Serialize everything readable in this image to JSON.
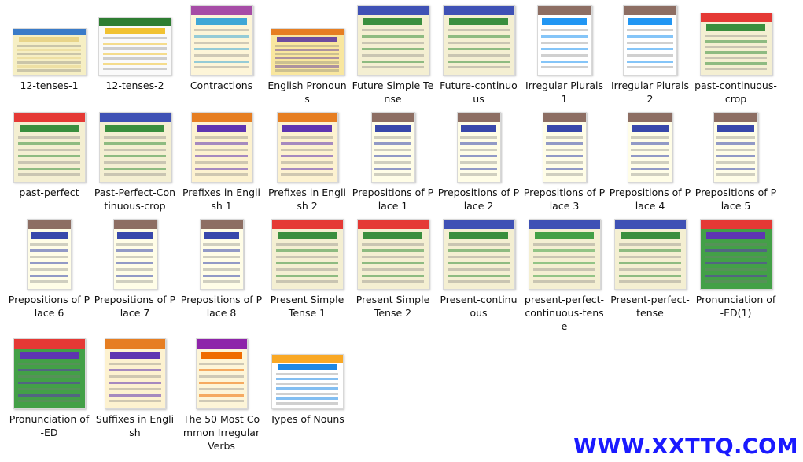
{
  "files": [
    {
      "name": "12-tenses-1",
      "label": "12-tenses-1",
      "icon": "image-thumbnail-icon",
      "palette": [
        "#f6efc4",
        "#e8d48a",
        "#3a7bc8"
      ]
    },
    {
      "name": "12-tenses-2",
      "label": "12-tenses-2",
      "icon": "image-thumbnail-icon",
      "palette": [
        "#fafafa",
        "#f1c232",
        "#2e7d32"
      ]
    },
    {
      "name": "Contractions",
      "label": "Contractions",
      "icon": "image-thumbnail-icon",
      "palette": [
        "#fdf5d8",
        "#3fa7d6",
        "#a64ca6"
      ]
    },
    {
      "name": "English Pronouns",
      "label": "English Pronouns",
      "icon": "image-thumbnail-icon",
      "palette": [
        "#f9e79f",
        "#6d4c9f",
        "#e67e22"
      ]
    },
    {
      "name": "Future Simple Tense",
      "label": "Future Simple Tense",
      "icon": "image-thumbnail-icon",
      "palette": [
        "#f4efd2",
        "#3a8f3e",
        "#3f51b5"
      ]
    },
    {
      "name": "Future-continuous",
      "label": "Future-continuous",
      "icon": "image-thumbnail-icon",
      "palette": [
        "#f4efd2",
        "#3a8f3e",
        "#3f51b5"
      ]
    },
    {
      "name": "Irregular Plurals 1",
      "label": "Irregular Plurals 1",
      "icon": "image-thumbnail-icon",
      "palette": [
        "#ffffff",
        "#2196f3",
        "#8d6e63"
      ]
    },
    {
      "name": "Irregular Plurals 2",
      "label": "Irregular Plurals 2",
      "icon": "image-thumbnail-icon",
      "palette": [
        "#ffffff",
        "#2196f3",
        "#8d6e63"
      ]
    },
    {
      "name": "past-continuous-crop",
      "label": "past-continuous-crop",
      "icon": "image-thumbnail-icon",
      "palette": [
        "#f4efd2",
        "#3a8f3e",
        "#e53935"
      ]
    },
    {
      "name": "past-perfect",
      "label": "past-perfect",
      "icon": "image-thumbnail-icon",
      "palette": [
        "#f4efd2",
        "#3a8f3e",
        "#e53935"
      ]
    },
    {
      "name": "Past-Perfect-Continuous-crop",
      "label": "Past-Perfect-Continuous-crop",
      "icon": "image-thumbnail-icon",
      "palette": [
        "#f4efd2",
        "#3a8f3e",
        "#3f51b5"
      ]
    },
    {
      "name": "Prefixes in English 1",
      "label": "Prefixes in English 1",
      "icon": "image-thumbnail-icon",
      "palette": [
        "#fdf2d0",
        "#5e35b1",
        "#e67e22"
      ]
    },
    {
      "name": "Prefixes in English 2",
      "label": "Prefixes in English 2",
      "icon": "image-thumbnail-icon",
      "palette": [
        "#fdf2d0",
        "#5e35b1",
        "#e67e22"
      ]
    },
    {
      "name": "Prepositions of Place 1",
      "label": "Prepositions of Place 1",
      "icon": "image-thumbnail-icon",
      "palette": [
        "#fffde7",
        "#3949ab",
        "#8d6e63"
      ]
    },
    {
      "name": "Prepositions of Place 2",
      "label": "Prepositions of Place 2",
      "icon": "image-thumbnail-icon",
      "palette": [
        "#fffde7",
        "#3949ab",
        "#8d6e63"
      ]
    },
    {
      "name": "Prepositions of Place 3",
      "label": "Prepositions of Place 3",
      "icon": "image-thumbnail-icon",
      "palette": [
        "#fffde7",
        "#3949ab",
        "#8d6e63"
      ]
    },
    {
      "name": "Prepositions of Place 4",
      "label": "Prepositions of Place 4",
      "icon": "image-thumbnail-icon",
      "palette": [
        "#fffde7",
        "#3949ab",
        "#8d6e63"
      ]
    },
    {
      "name": "Prepositions of Place 5",
      "label": "Prepositions of Place 5",
      "icon": "image-thumbnail-icon",
      "palette": [
        "#fffde7",
        "#3949ab",
        "#8d6e63"
      ]
    },
    {
      "name": "Prepositions of Place 6",
      "label": "Prepositions of Place 6",
      "icon": "image-thumbnail-icon",
      "palette": [
        "#fffde7",
        "#3949ab",
        "#8d6e63"
      ]
    },
    {
      "name": "Prepositions of Place 7",
      "label": "Prepositions of Place 7",
      "icon": "image-thumbnail-icon",
      "palette": [
        "#fffde7",
        "#3949ab",
        "#8d6e63"
      ]
    },
    {
      "name": "Prepositions of Place 8",
      "label": "Prepositions of Place 8",
      "icon": "image-thumbnail-icon",
      "palette": [
        "#fffde7",
        "#3949ab",
        "#8d6e63"
      ]
    },
    {
      "name": "Present Simple Tense 1",
      "label": "Present Simple Tense 1",
      "icon": "image-thumbnail-icon",
      "palette": [
        "#f4efd2",
        "#3a8f3e",
        "#e53935"
      ]
    },
    {
      "name": "Present Simple Tense 2",
      "label": "Present Simple Tense 2",
      "icon": "image-thumbnail-icon",
      "palette": [
        "#f4efd2",
        "#3a8f3e",
        "#e53935"
      ]
    },
    {
      "name": "Present-continuous",
      "label": "Present-continuous",
      "icon": "image-thumbnail-icon",
      "palette": [
        "#f4efd2",
        "#3a8f3e",
        "#3f51b5"
      ]
    },
    {
      "name": "present-perfect-continuous-tense",
      "label": "present-perfect-continuous-tense",
      "icon": "image-thumbnail-icon",
      "palette": [
        "#f4efd2",
        "#43a047",
        "#3f51b5"
      ]
    },
    {
      "name": "Present-perfect-tense",
      "label": "Present-perfect-tense",
      "icon": "image-thumbnail-icon",
      "palette": [
        "#f4efd2",
        "#3a8f3e",
        "#3f51b5"
      ]
    },
    {
      "name": "Pronunciation of -ED(1)",
      "label": "Pronunciation of -ED(1)",
      "icon": "image-thumbnail-icon",
      "palette": [
        "#43a047",
        "#5e35b1",
        "#e53935"
      ]
    },
    {
      "name": "Pronunciation of -ED",
      "label": "Pronunciation of -ED",
      "icon": "image-thumbnail-icon",
      "palette": [
        "#43a047",
        "#5e35b1",
        "#e53935"
      ]
    },
    {
      "name": "Suffixes in English",
      "label": "Suffixes in English",
      "icon": "image-thumbnail-icon",
      "palette": [
        "#fdf2d0",
        "#5e35b1",
        "#e67e22"
      ]
    },
    {
      "name": "The 50 Most Common Irregular Verbs",
      "label": "The 50 Most Common Irregular Verbs",
      "icon": "image-thumbnail-icon",
      "palette": [
        "#fdf5d8",
        "#ef6c00",
        "#8e24aa"
      ]
    },
    {
      "name": "Types of Nouns",
      "label": "Types of Nouns",
      "icon": "image-thumbnail-icon",
      "palette": [
        "#ffffff",
        "#1e88e5",
        "#f9a825"
      ]
    }
  ],
  "watermark": {
    "text": "WWW.XXTTQ.COM",
    "color": "#1a1aff"
  }
}
